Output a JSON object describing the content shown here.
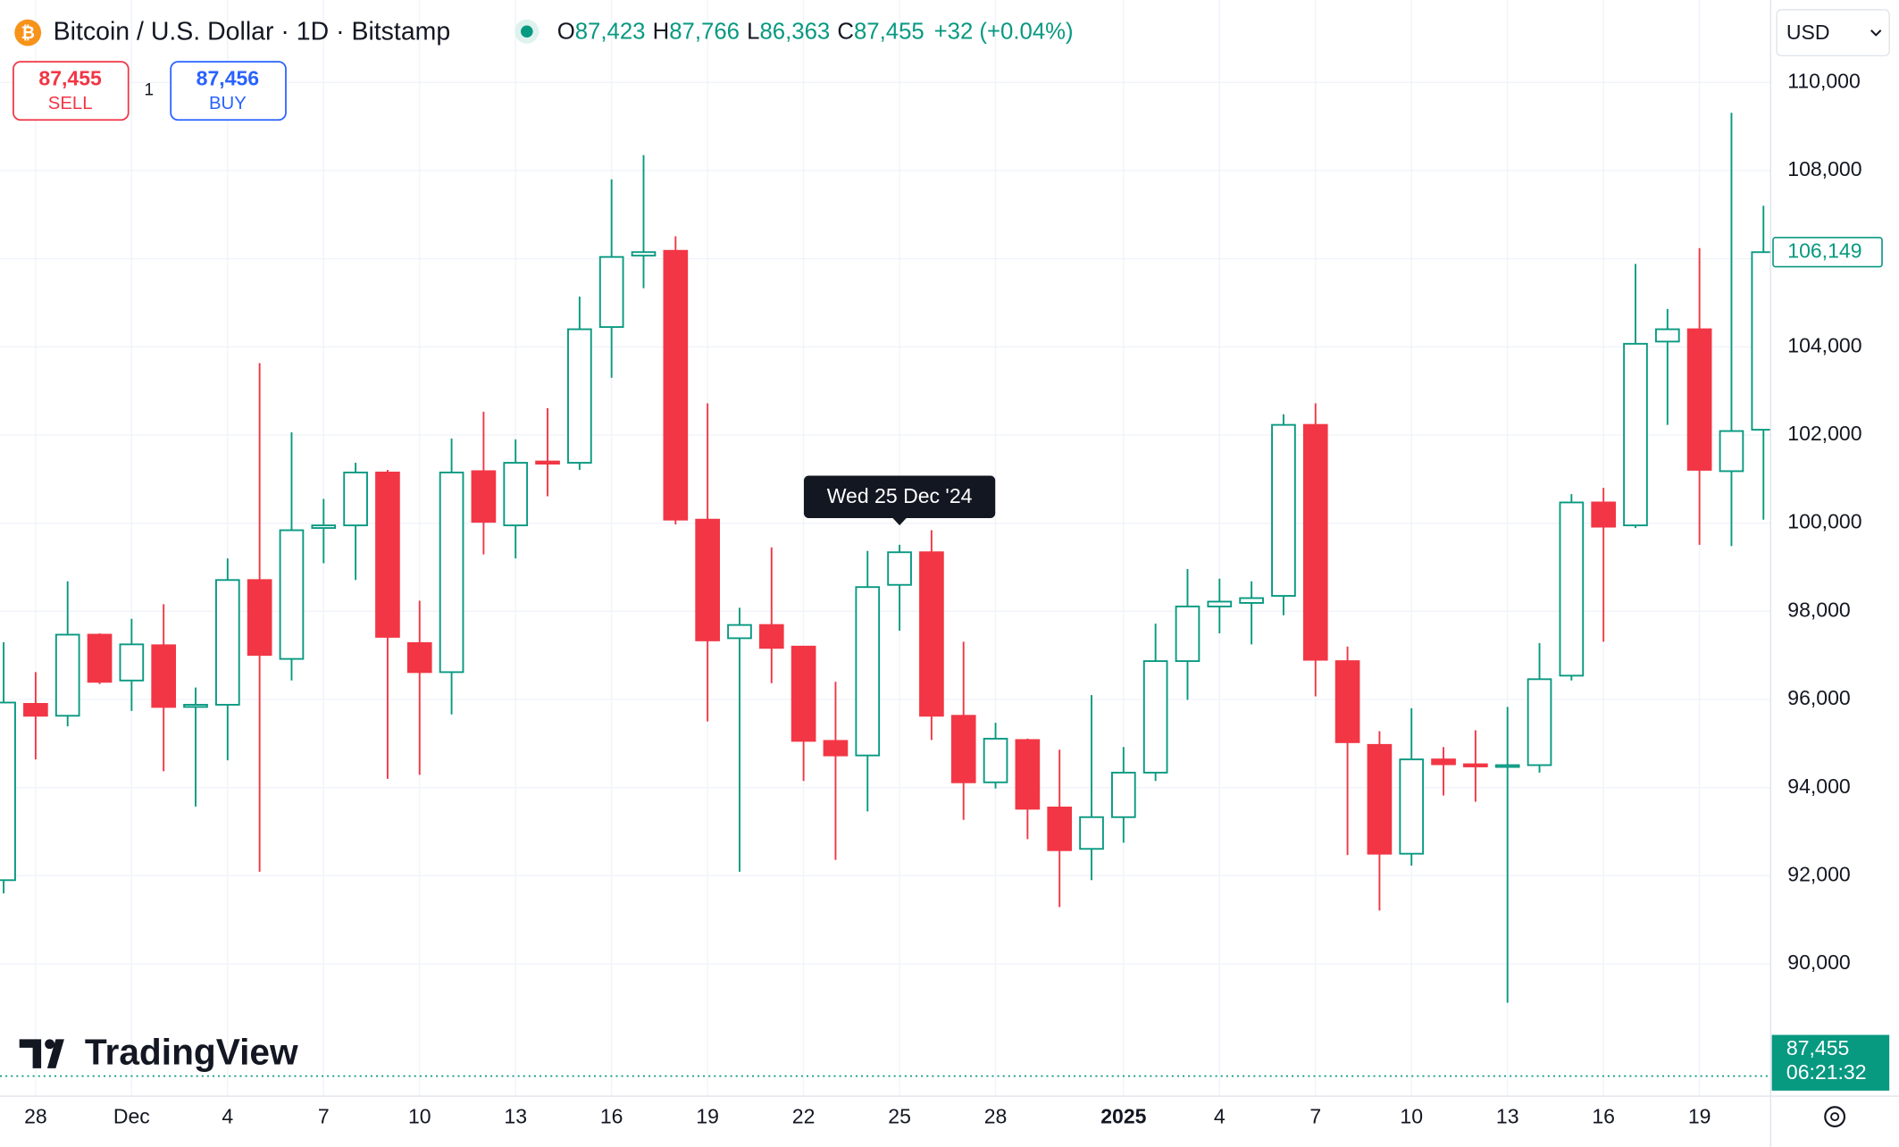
{
  "header": {
    "title": "Bitcoin / U.S. Dollar · 1D · Bitstamp",
    "ohlc": [
      {
        "label": "O",
        "value": "87,423"
      },
      {
        "label": "H",
        "value": "87,766"
      },
      {
        "label": "L",
        "value": "86,363"
      },
      {
        "label": "C",
        "value": "87,455"
      }
    ],
    "change": "+32 (+0.04%)"
  },
  "trade": {
    "sell_price": "87,455",
    "sell_label": "SELL",
    "quantity": "1",
    "buy_price": "87,456",
    "buy_label": "BUY"
  },
  "currency": "USD",
  "logo": "TradingView",
  "chart_data": {
    "type": "candlestick",
    "x": [
      "2024-11-27",
      "2024-11-28",
      "2024-11-29",
      "2024-11-30",
      "2024-12-01",
      "2024-12-02",
      "2024-12-03",
      "2024-12-04",
      "2024-12-05",
      "2024-12-06",
      "2024-12-07",
      "2024-12-08",
      "2024-12-09",
      "2024-12-10",
      "2024-12-11",
      "2024-12-12",
      "2024-12-13",
      "2024-12-14",
      "2024-12-15",
      "2024-12-16",
      "2024-12-17",
      "2024-12-18",
      "2024-12-19",
      "2024-12-20",
      "2024-12-21",
      "2024-12-22",
      "2024-12-23",
      "2024-12-24",
      "2024-12-25",
      "2024-12-26",
      "2024-12-27",
      "2024-12-28",
      "2024-12-29",
      "2024-12-30",
      "2024-12-31",
      "2025-01-01",
      "2025-01-02",
      "2025-01-03",
      "2025-01-04",
      "2025-01-05",
      "2025-01-06",
      "2025-01-07",
      "2025-01-08",
      "2025-01-09",
      "2025-01-10",
      "2025-01-11",
      "2025-01-12",
      "2025-01-13",
      "2025-01-14",
      "2025-01-15",
      "2025-01-16",
      "2025-01-17",
      "2025-01-18",
      "2025-01-19",
      "2025-01-20",
      "2025-01-21"
    ],
    "open": [
      91900,
      95900,
      95630,
      97470,
      96430,
      97230,
      95830,
      95880,
      98710,
      96920,
      99890,
      99950,
      101150,
      97280,
      96620,
      101180,
      99950,
      101400,
      101370,
      104450,
      106070,
      106180,
      100080,
      97390,
      97690,
      97200,
      95060,
      94730,
      98600,
      99340,
      95630,
      94120,
      95080,
      93550,
      92610,
      93330,
      94340,
      96870,
      98110,
      98190,
      98350,
      102230,
      96870,
      94970,
      92500,
      94640,
      94530,
      94480,
      94510,
      96540,
      100470,
      99950,
      104120,
      104400,
      101180,
      102120
    ],
    "high": [
      97300,
      96620,
      98680,
      97500,
      97830,
      98160,
      96270,
      99200,
      103630,
      102060,
      100550,
      101370,
      101210,
      98240,
      101920,
      102530,
      101900,
      102610,
      105140,
      107800,
      108350,
      106510,
      102720,
      98080,
      99450,
      97200,
      96400,
      99370,
      99510,
      99840,
      97310,
      95470,
      95110,
      94860,
      96100,
      94920,
      97720,
      98960,
      98740,
      98680,
      102470,
      102720,
      97200,
      95280,
      95800,
      94920,
      95300,
      95830,
      97280,
      100660,
      100800,
      105880,
      104860,
      106240,
      109310,
      107200
    ],
    "low": [
      91600,
      94640,
      95390,
      96350,
      95740,
      94370,
      93570,
      94620,
      92090,
      96430,
      99090,
      98710,
      94200,
      94290,
      95660,
      99290,
      99200,
      100610,
      101210,
      103300,
      105330,
      99970,
      95500,
      92090,
      96370,
      94150,
      92360,
      93460,
      97560,
      95080,
      93270,
      93980,
      92830,
      91290,
      91900,
      92750,
      94150,
      95990,
      97500,
      97250,
      97910,
      96070,
      92470,
      91210,
      92230,
      93820,
      93680,
      89120,
      94340,
      96430,
      97310,
      99890,
      102230,
      99510,
      99480,
      100080
    ],
    "close": [
      95930,
      95630,
      97470,
      96400,
      97250,
      95830,
      95880,
      98710,
      97010,
      99840,
      99950,
      101150,
      97420,
      96620,
      101150,
      100030,
      101370,
      101350,
      104400,
      106040,
      106150,
      100080,
      97340,
      97690,
      97170,
      95060,
      94730,
      98550,
      99340,
      95630,
      94120,
      95110,
      93520,
      92580,
      93330,
      94340,
      96870,
      98110,
      98220,
      98300,
      102230,
      96900,
      95030,
      92500,
      94640,
      94530,
      94480,
      94510,
      96460,
      100470,
      99920,
      104070,
      104400,
      101210,
      102090,
      106149
    ],
    "up_color": "#089981",
    "down_color": "#f23645",
    "ylim": [
      87000,
      111870
    ],
    "yticks": [
      {
        "value": 90000,
        "label": "90,000"
      },
      {
        "value": 92000,
        "label": "92,000"
      },
      {
        "value": 94000,
        "label": "94,000"
      },
      {
        "value": 96000,
        "label": "96,000"
      },
      {
        "value": 98000,
        "label": "98,000"
      },
      {
        "value": 100000,
        "label": "100,000"
      },
      {
        "value": 102000,
        "label": "102,000"
      },
      {
        "value": 104000,
        "label": "104,000"
      },
      {
        "value": 106000,
        "label": "106,000"
      },
      {
        "value": 108000,
        "label": "108,000"
      },
      {
        "value": 110000,
        "label": "110,000"
      }
    ],
    "xticks": [
      {
        "value": "2024-11-28",
        "label": "28"
      },
      {
        "value": "2024-12-01",
        "label": "Dec"
      },
      {
        "value": "2024-12-04",
        "label": "4"
      },
      {
        "value": "2024-12-07",
        "label": "7"
      },
      {
        "value": "2024-12-10",
        "label": "10"
      },
      {
        "value": "2024-12-13",
        "label": "13"
      },
      {
        "value": "2024-12-16",
        "label": "16"
      },
      {
        "value": "2024-12-19",
        "label": "19"
      },
      {
        "value": "2024-12-22",
        "label": "22"
      },
      {
        "value": "2024-12-25",
        "label": "25"
      },
      {
        "value": "2024-12-28",
        "label": "28"
      },
      {
        "value": "2025-01-01",
        "label": "2025"
      },
      {
        "value": "2025-01-04",
        "label": "4"
      },
      {
        "value": "2025-01-07",
        "label": "7"
      },
      {
        "value": "2025-01-10",
        "label": "10"
      },
      {
        "value": "2025-01-13",
        "label": "13"
      },
      {
        "value": "2025-01-16",
        "label": "16"
      },
      {
        "value": "2025-01-19",
        "label": "19"
      }
    ],
    "grid": true,
    "last_price": {
      "value": 106149,
      "label": "106,149"
    },
    "current_price": {
      "value": 87455,
      "label": "87,455",
      "countdown": "06:21:32"
    },
    "tooltip": {
      "date": "2024-12-25",
      "label": "Wed 25 Dec '24"
    }
  }
}
